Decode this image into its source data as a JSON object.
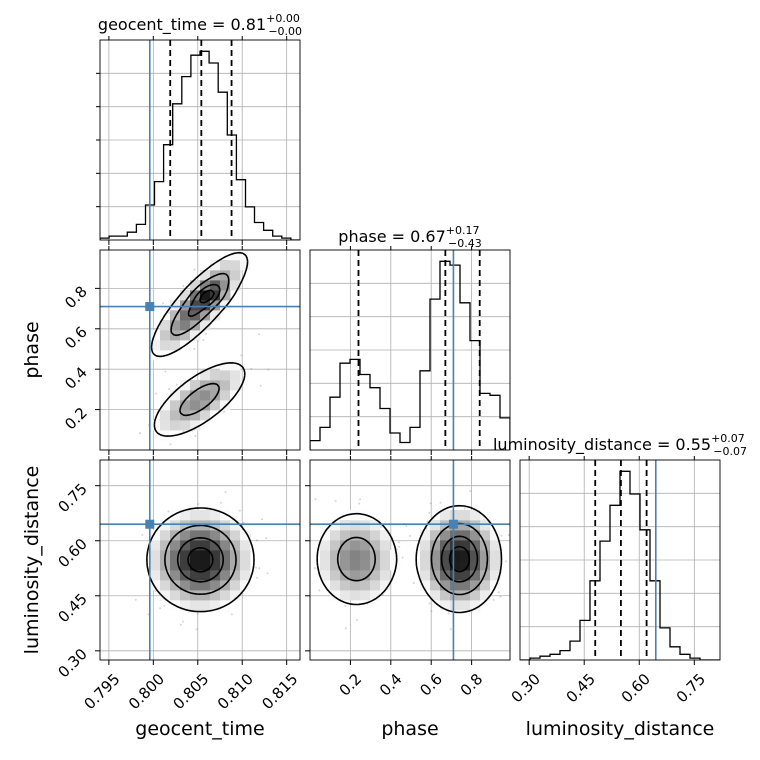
{
  "chart_data": {
    "type": "corner",
    "grid": true,
    "truth_color": "#4682b4",
    "params": [
      {
        "name": "geocent_time",
        "label": "geocent_time",
        "title": "geocent_time = 0.81",
        "title_sup": "+0.00",
        "title_sub": "−0.00",
        "range": [
          0.794,
          0.8165
        ],
        "ticks": [
          0.795,
          0.8,
          0.805,
          0.81,
          0.815
        ],
        "tick_labels": [
          "0.795",
          "0.800",
          "0.805",
          "0.810",
          "0.815"
        ],
        "truth": 0.7996,
        "quantiles": [
          0.8019,
          0.8054,
          0.8088
        ],
        "hist": [
          1,
          2,
          2,
          4,
          8,
          18,
          30,
          49,
          70,
          84,
          95,
          97,
          91,
          76,
          54,
          31,
          17,
          9,
          5,
          2,
          1,
          0
        ]
      },
      {
        "name": "phase",
        "label": "phase",
        "title": "phase = 0.67",
        "title_sup": "+0.17",
        "title_sub": "−0.43",
        "range": [
          0.0,
          0.99
        ],
        "ticks": [
          0.2,
          0.4,
          0.6,
          0.8
        ],
        "tick_labels": [
          "0.2",
          "0.4",
          "0.6",
          "0.8"
        ],
        "truth": 0.71,
        "quantiles": [
          0.24,
          0.67,
          0.84
        ],
        "hist": [
          5,
          12,
          28,
          46,
          48,
          40,
          33,
          22,
          9,
          4,
          12,
          42,
          80,
          100,
          98,
          78,
          58,
          30,
          29,
          17
        ]
      },
      {
        "name": "luminosity_distance",
        "label": "luminosity_distance",
        "title": "luminosity_distance = 0.55",
        "title_sup": "+0.07",
        "title_sub": "−0.07",
        "range": [
          0.275,
          0.82
        ],
        "ticks": [
          0.3,
          0.45,
          0.6,
          0.75
        ],
        "tick_labels": [
          "0.30",
          "0.45",
          "0.60",
          "0.75"
        ],
        "truth": 0.645,
        "quantiles": [
          0.48,
          0.55,
          0.62
        ],
        "hist": [
          0,
          1,
          2,
          3,
          5,
          10,
          21,
          42,
          63,
          82,
          100,
          88,
          69,
          42,
          17,
          7,
          3,
          1,
          0,
          0
        ]
      }
    ],
    "contour_levels": 4
  }
}
